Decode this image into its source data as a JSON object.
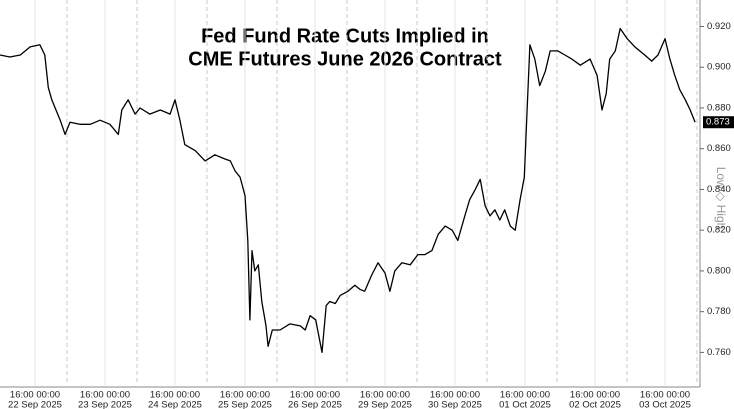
{
  "chart_data": {
    "type": "line",
    "title": [
      "Fed Fund Rate Cuts Implied in",
      "CME Futures June 2026 Contract"
    ],
    "side_label": "Low ◇ High",
    "current_value": {
      "value": 0.873,
      "label": "0.873"
    },
    "xlim": [
      0,
      10
    ],
    "xticks": [
      {
        "value": 0.5,
        "label": "16:00 00:00"
      },
      {
        "value": 1.5,
        "label": "16:00 00:00"
      },
      {
        "value": 2.5,
        "label": "16:00 00:00"
      },
      {
        "value": 3.5,
        "label": "16:00 00:00"
      },
      {
        "value": 4.5,
        "label": "16:00 00:00"
      },
      {
        "value": 5.5,
        "label": "16:00 00:00"
      },
      {
        "value": 6.5,
        "label": "16:00 00:00"
      },
      {
        "value": 7.5,
        "label": "16:00 00:00"
      },
      {
        "value": 8.5,
        "label": "16:00 00:00"
      },
      {
        "value": 9.5,
        "label": "16:00 00:00"
      }
    ],
    "xdates": [
      "22 Sep 2025",
      "23 Sep 2025",
      "24 Sep 2025",
      "25 Sep 2025",
      "26 Sep 2025",
      "29 Sep 2025",
      "30 Sep 2025",
      "01 Oct 2025",
      "02 Oct 2025",
      "03 Oct 2025"
    ],
    "ylim": [
      0.744,
      0.933
    ],
    "yticks": [
      {
        "value": 0.76,
        "label": "0.760"
      },
      {
        "value": 0.78,
        "label": "0.780"
      },
      {
        "value": 0.8,
        "label": "0.800"
      },
      {
        "value": 0.82,
        "label": "0.820"
      },
      {
        "value": 0.84,
        "label": "0.840"
      },
      {
        "value": 0.86,
        "label": "0.860"
      },
      {
        "value": 0.88,
        "label": "0.880"
      },
      {
        "value": 0.9,
        "label": "0.900"
      },
      {
        "value": 0.92,
        "label": "0.920"
      }
    ],
    "series": [
      {
        "name": "June 2026",
        "color": "#000000",
        "x": [
          0,
          0.14,
          0.29,
          0.43,
          0.57,
          0.64,
          0.69,
          0.74,
          0.86,
          0.93,
          1.0,
          1.14,
          1.29,
          1.43,
          1.57,
          1.69,
          1.74,
          1.83,
          1.93,
          2.0,
          2.14,
          2.29,
          2.43,
          2.5,
          2.57,
          2.64,
          2.79,
          2.93,
          3.07,
          3.21,
          3.29,
          3.36,
          3.43,
          3.5,
          3.54,
          3.57,
          3.6,
          3.64,
          3.69,
          3.74,
          3.8,
          3.83,
          3.89,
          4.0,
          4.14,
          4.29,
          4.36,
          4.43,
          4.51,
          4.6,
          4.66,
          4.71,
          4.79,
          4.86,
          4.97,
          5.07,
          5.14,
          5.21,
          5.31,
          5.4,
          5.5,
          5.57,
          5.64,
          5.74,
          5.86,
          5.97,
          6.07,
          6.17,
          6.26,
          6.36,
          6.46,
          6.54,
          6.64,
          6.71,
          6.79,
          6.86,
          6.93,
          7.0,
          7.07,
          7.14,
          7.21,
          7.29,
          7.36,
          7.43,
          7.49,
          7.53,
          7.57,
          7.64,
          7.71,
          7.79,
          7.86,
          7.97,
          8.07,
          8.17,
          8.29,
          8.43,
          8.53,
          8.6,
          8.66,
          8.71,
          8.79,
          8.86,
          8.96,
          9.07,
          9.21,
          9.31,
          9.4,
          9.5,
          9.57,
          9.64,
          9.71,
          9.79,
          9.86,
          9.93
        ],
        "values": [
          0.906,
          0.905,
          0.906,
          0.91,
          0.911,
          0.906,
          0.89,
          0.884,
          0.874,
          0.867,
          0.873,
          0.872,
          0.872,
          0.874,
          0.872,
          0.867,
          0.879,
          0.884,
          0.877,
          0.88,
          0.877,
          0.879,
          0.877,
          0.884,
          0.874,
          0.862,
          0.859,
          0.854,
          0.857,
          0.855,
          0.854,
          0.849,
          0.846,
          0.837,
          0.815,
          0.776,
          0.81,
          0.8,
          0.803,
          0.785,
          0.773,
          0.763,
          0.771,
          0.771,
          0.774,
          0.773,
          0.771,
          0.778,
          0.776,
          0.76,
          0.783,
          0.785,
          0.784,
          0.788,
          0.79,
          0.793,
          0.791,
          0.79,
          0.798,
          0.804,
          0.799,
          0.79,
          0.8,
          0.804,
          0.803,
          0.808,
          0.808,
          0.81,
          0.818,
          0.822,
          0.82,
          0.815,
          0.827,
          0.835,
          0.84,
          0.845,
          0.832,
          0.827,
          0.83,
          0.825,
          0.83,
          0.822,
          0.82,
          0.835,
          0.846,
          0.879,
          0.911,
          0.904,
          0.891,
          0.898,
          0.908,
          0.908,
          0.906,
          0.904,
          0.901,
          0.904,
          0.896,
          0.879,
          0.887,
          0.904,
          0.908,
          0.919,
          0.914,
          0.91,
          0.906,
          0.903,
          0.906,
          0.914,
          0.904,
          0.896,
          0.889,
          0.884,
          0.879,
          0.873
        ]
      }
    ]
  }
}
